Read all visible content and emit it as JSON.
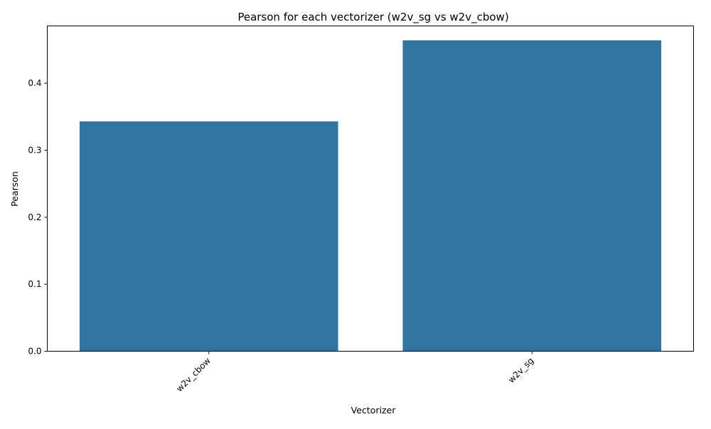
{
  "chart_data": {
    "type": "bar",
    "title": "Pearson for each vectorizer (w2v_sg vs w2v_cbow)",
    "xlabel": "Vectorizer",
    "ylabel": "Pearson",
    "categories": [
      "w2v_cbow",
      "w2v_sg"
    ],
    "values": [
      0.343,
      0.464
    ],
    "ylim": [
      0,
      0.4855
    ],
    "yticks": [
      "0.0",
      "0.1",
      "0.2",
      "0.3",
      "0.4"
    ],
    "grid": false,
    "legend": "none",
    "bar_color": "#3274a1",
    "x_tick_rotation": 45
  }
}
